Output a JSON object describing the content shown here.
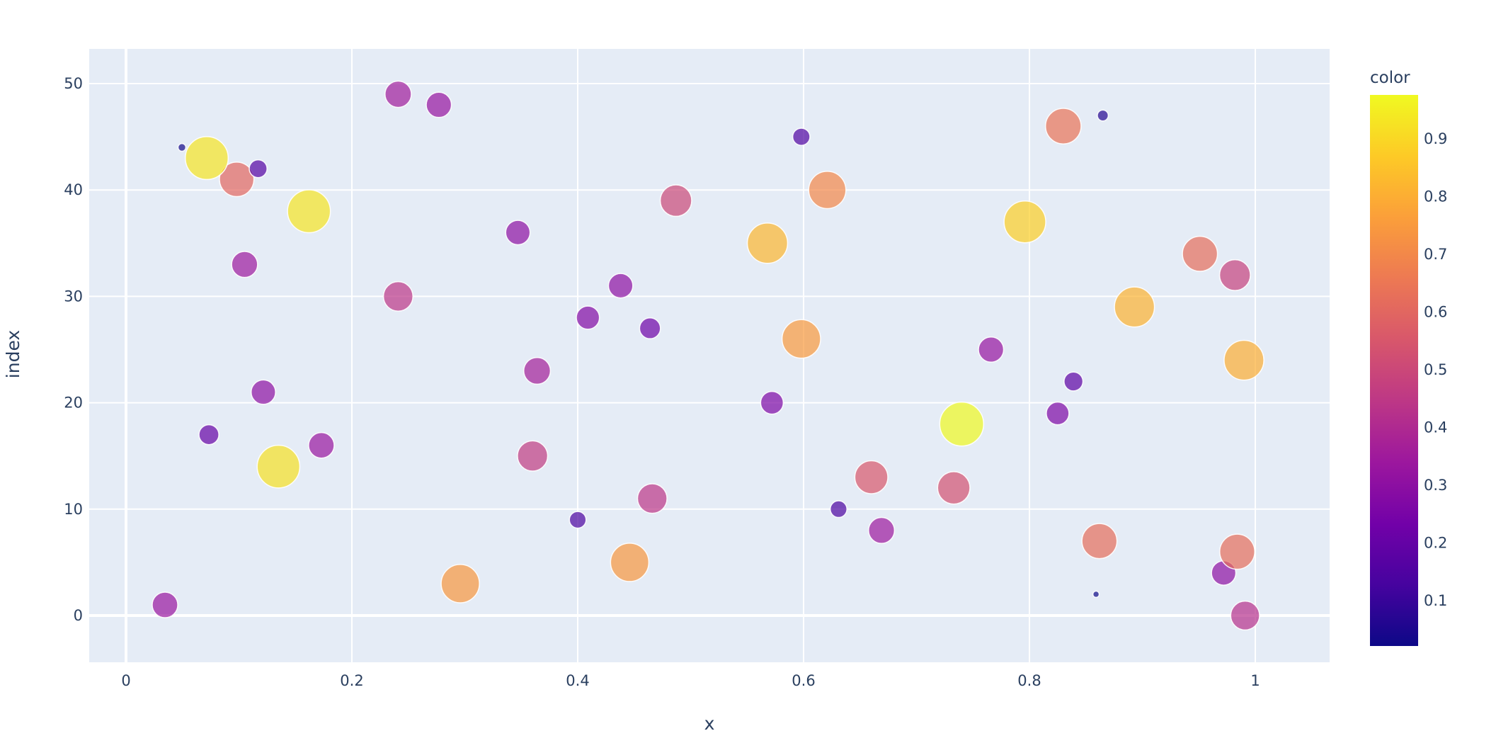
{
  "chart_data": {
    "type": "scatter",
    "title": "",
    "xlabel": "x",
    "ylabel": "index",
    "xlim": [
      -0.032,
      1.066
    ],
    "ylim": [
      -4.4,
      53.2
    ],
    "x_ticks": [
      "0",
      "0.2",
      "0.4",
      "0.6",
      "0.8",
      "1"
    ],
    "x_tick_values": [
      0,
      0.2,
      0.4,
      0.6,
      0.8,
      1.0
    ],
    "y_ticks": [
      "0",
      "10",
      "20",
      "30",
      "40",
      "50"
    ],
    "y_tick_values": [
      0,
      10,
      20,
      30,
      40,
      50
    ],
    "grid": true,
    "marker_opacity": 0.7,
    "size_encodes": "color",
    "colorbar": {
      "title": "color",
      "colorscale": "Plasma",
      "cmin": 0.02,
      "cmax": 0.975,
      "ticks": [
        "0.1",
        "0.2",
        "0.3",
        "0.4",
        "0.5",
        "0.6",
        "0.7",
        "0.8",
        "0.9"
      ],
      "tick_values": [
        0.1,
        0.2,
        0.3,
        0.4,
        0.5,
        0.6,
        0.7,
        0.8,
        0.9
      ],
      "position": "right"
    },
    "points": [
      {
        "index": 0,
        "x": 0.991,
        "color": 0.42
      },
      {
        "index": 1,
        "x": 0.0345,
        "color": 0.33
      },
      {
        "index": 2,
        "x": 0.859,
        "color": 0.02
      },
      {
        "index": 3,
        "x": 0.296,
        "color": 0.74
      },
      {
        "index": 4,
        "x": 0.972,
        "color": 0.3
      },
      {
        "index": 5,
        "x": 0.446,
        "color": 0.74
      },
      {
        "index": 6,
        "x": 0.984,
        "color": 0.62
      },
      {
        "index": 7,
        "x": 0.862,
        "color": 0.62
      },
      {
        "index": 8,
        "x": 0.669,
        "color": 0.34
      },
      {
        "index": 9,
        "x": 0.4,
        "color": 0.14
      },
      {
        "index": 10,
        "x": 0.631,
        "color": 0.14
      },
      {
        "index": 11,
        "x": 0.466,
        "color": 0.44
      },
      {
        "index": 12,
        "x": 0.733,
        "color": 0.53
      },
      {
        "index": 13,
        "x": 0.66,
        "color": 0.55
      },
      {
        "index": 14,
        "x": 0.135,
        "color": 0.92
      },
      {
        "index": 15,
        "x": 0.36,
        "color": 0.46
      },
      {
        "index": 16,
        "x": 0.173,
        "color": 0.33
      },
      {
        "index": 17,
        "x": 0.0734,
        "color": 0.2
      },
      {
        "index": 18,
        "x": 0.74,
        "color": 0.975
      },
      {
        "index": 19,
        "x": 0.825,
        "color": 0.26
      },
      {
        "index": 20,
        "x": 0.572,
        "color": 0.26
      },
      {
        "index": 21,
        "x": 0.1216,
        "color": 0.3
      },
      {
        "index": 22,
        "x": 0.839,
        "color": 0.18
      },
      {
        "index": 23,
        "x": 0.364,
        "color": 0.36
      },
      {
        "index": 24,
        "x": 0.99,
        "color": 0.8
      },
      {
        "index": 25,
        "x": 0.766,
        "color": 0.32
      },
      {
        "index": 26,
        "x": 0.598,
        "color": 0.75
      },
      {
        "index": 27,
        "x": 0.464,
        "color": 0.22
      },
      {
        "index": 28,
        "x": 0.409,
        "color": 0.27
      },
      {
        "index": 29,
        "x": 0.893,
        "color": 0.81
      },
      {
        "index": 30,
        "x": 0.241,
        "color": 0.44
      },
      {
        "index": 31,
        "x": 0.438,
        "color": 0.3
      },
      {
        "index": 32,
        "x": 0.982,
        "color": 0.48
      },
      {
        "index": 33,
        "x": 0.105,
        "color": 0.34
      },
      {
        "index": 34,
        "x": 0.951,
        "color": 0.62
      },
      {
        "index": 35,
        "x": 0.568,
        "color": 0.82
      },
      {
        "index": 36,
        "x": 0.347,
        "color": 0.3
      },
      {
        "index": 37,
        "x": 0.796,
        "color": 0.88
      },
      {
        "index": 38,
        "x": 0.162,
        "color": 0.93
      },
      {
        "index": 39,
        "x": 0.487,
        "color": 0.5
      },
      {
        "index": 40,
        "x": 0.621,
        "color": 0.7
      },
      {
        "index": 41,
        "x": 0.098,
        "color": 0.6
      },
      {
        "index": 42,
        "x": 0.117,
        "color": 0.16
      },
      {
        "index": 43,
        "x": 0.0715,
        "color": 0.93
      },
      {
        "index": 44,
        "x": 0.0495,
        "color": 0.03
      },
      {
        "index": 45,
        "x": 0.598,
        "color": 0.15
      },
      {
        "index": 46,
        "x": 0.83,
        "color": 0.64
      },
      {
        "index": 47,
        "x": 0.865,
        "color": 0.06
      },
      {
        "index": 48,
        "x": 0.277,
        "color": 0.32
      },
      {
        "index": 49,
        "x": 0.241,
        "color": 0.35
      }
    ]
  },
  "style": {
    "plot_bg": "#e5ecf6",
    "paper_bg": "#ffffff",
    "grid_color": "#ffffff",
    "text_color": "#2a3f5f",
    "marker_outline": "#ffffff"
  }
}
